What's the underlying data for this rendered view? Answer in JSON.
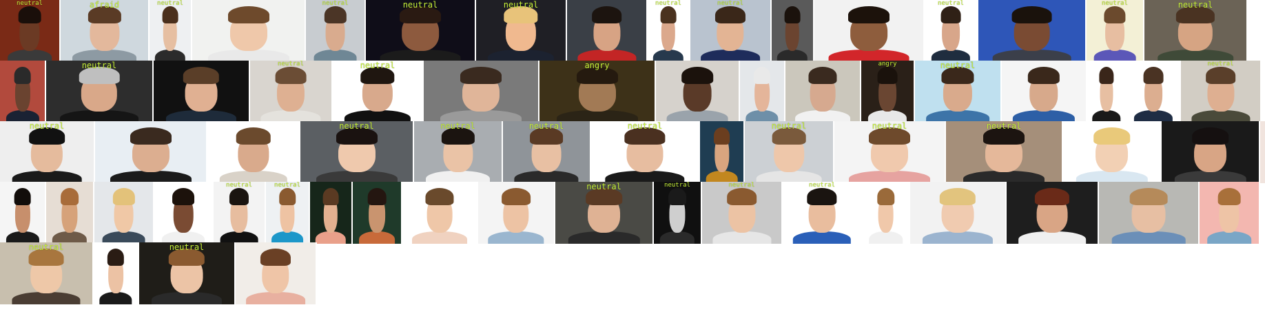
{
  "gallery": {
    "label_color": "#c8f23a",
    "rows": [
      {
        "tiles": [
          {
            "label": "neutral",
            "bg": "#7a2a16",
            "skin": "#6b3a24",
            "hair": "#1a0f0a",
            "cloth": "#3a3a3a"
          },
          {
            "label": "afraid",
            "bg": "#cfd8de",
            "skin": "#e3b89c",
            "hair": "#5a3b25",
            "cloth": "#8d9aa3"
          },
          {
            "label": "neutral",
            "bg": "#eef0f2",
            "skin": "#e6bfa2",
            "hair": "#4a2f1c",
            "cloth": "#2b2b2b"
          },
          {
            "label": "",
            "bg": "#f1f2f0",
            "skin": "#efc8aa",
            "hair": "#6e4a2c",
            "cloth": "#e9e9e9"
          },
          {
            "label": "neutral",
            "bg": "#c8ccd0",
            "skin": "#d9ab8e",
            "hair": "#4b3526",
            "cloth": "#6f8795"
          },
          {
            "label": "neutral",
            "bg": "#0f0d18",
            "skin": "#8d5a3e",
            "hair": "#2a1a12",
            "cloth": "#1b1b1b"
          },
          {
            "label": "neutral",
            "bg": "#1f1f25",
            "skin": "#f0b98f",
            "hair": "#e8c37a",
            "cloth": "#1c2230"
          },
          {
            "label": "",
            "bg": "#3a3f46",
            "skin": "#d7a384",
            "hair": "#1c140f",
            "cloth": "#c32525"
          },
          {
            "label": "neutral",
            "bg": "#ffffff",
            "skin": "#dba88c",
            "hair": "#4a321f",
            "cloth": "#27394d"
          },
          {
            "label": "neutral",
            "bg": "#b9c3cf",
            "skin": "#e3b494",
            "hair": "#3a2719",
            "cloth": "#1e2c5b"
          },
          {
            "label": "",
            "bg": "#5a5a5a",
            "skin": "#6b4430",
            "hair": "#1b120c",
            "cloth": "#2a2a2a"
          },
          {
            "label": "",
            "bg": "#f2f2f2",
            "skin": "#8e5d3d",
            "hair": "#1c120b",
            "cloth": "#d2262a"
          },
          {
            "label": "neutral",
            "bg": "#ffffff",
            "skin": "#d8a68a",
            "hair": "#2f2016",
            "cloth": "#1f2d3f"
          },
          {
            "label": "",
            "bg": "#2e56b8",
            "skin": "#7a4b33",
            "hair": "#1a120c",
            "cloth": "#3b3f4a"
          },
          {
            "label": "neutral",
            "bg": "#f3f0d6",
            "skin": "#e7bea1",
            "hair": "#6b4a2d",
            "cloth": "#5b57b8"
          },
          {
            "label": "neutral",
            "bg": "#6b6356",
            "skin": "#d6a483",
            "hair": "#4a3322",
            "cloth": "#3f4a38"
          }
        ]
      },
      {
        "tiles": [
          {
            "label": "",
            "bg": "#b24a3d",
            "skin": "#6a4330",
            "hair": "#2a2a2a",
            "cloth": "#1a2233"
          },
          {
            "label": "neutral",
            "bg": "#2d2d2d",
            "skin": "#d9a889",
            "hair": "#bfbfbf",
            "cloth": "#151515"
          },
          {
            "label": "",
            "bg": "#111111",
            "skin": "#e0b092",
            "hair": "#5a3e28",
            "cloth": "#1e2b3a"
          },
          {
            "label": "neutral",
            "bg": "#d9d5cf",
            "skin": "#deb092",
            "hair": "#6b4d35",
            "cloth": "#e4e2dd"
          },
          {
            "label": "neutral",
            "bg": "#ffffff",
            "skin": "#d8a98c",
            "hair": "#1f1610",
            "cloth": "#111111"
          },
          {
            "label": "",
            "bg": "#7a7a7a",
            "skin": "#e0b599",
            "hair": "#3a2a1f",
            "cloth": "#9a9a9a"
          },
          {
            "label": "angry",
            "bg": "#3d3118",
            "skin": "#a27a55",
            "hair": "#251a0f",
            "cloth": "#2b2416"
          },
          {
            "label": "",
            "bg": "#d6d2cc",
            "skin": "#5a3a28",
            "hair": "#1b120c",
            "cloth": "#9aa3ab"
          },
          {
            "label": "",
            "bg": "#e4e7ea",
            "skin": "#e4b59a",
            "hair": "#e9e9e9",
            "cloth": "#6e8fa8"
          },
          {
            "label": "",
            "bg": "#cbc7bc",
            "skin": "#d6a98f",
            "hair": "#3a2a1f",
            "cloth": "#f1f1f1"
          },
          {
            "label": "angry",
            "bg": "#2a2018",
            "skin": "#6a4632",
            "hair": "#1a120c",
            "cloth": "#e8e8e8"
          },
          {
            "label": "neutral",
            "bg": "#bfe0ef",
            "skin": "#d9aa8c",
            "hair": "#3a281b",
            "cloth": "#3d74a8"
          },
          {
            "label": "",
            "bg": "#f5f5f5",
            "skin": "#d7a98b",
            "hair": "#3a281b",
            "cloth": "#2d5fa6"
          },
          {
            "label": "",
            "bg": "#ffffff",
            "skin": "#e7bfa2",
            "hair": "#3a261a",
            "cloth": "#1a1a1a"
          },
          {
            "label": "",
            "bg": "#ffffff",
            "skin": "#dcae90",
            "hair": "#4a3323",
            "cloth": "#1f2d44"
          },
          {
            "label": "neutral",
            "bg": "#d2cdc4",
            "skin": "#deaf91",
            "hair": "#5a3f2a",
            "cloth": "#4a4a3a"
          }
        ]
      },
      {
        "tiles": [
          {
            "label": "neutral",
            "bg": "#eeeeee",
            "skin": "#e5bb9d",
            "hair": "#111111",
            "cloth": "#1a1a1a"
          },
          {
            "label": "",
            "bg": "#e8eef3",
            "skin": "#dcae90",
            "hair": "#3a2a1f",
            "cloth": "#1b1b1b"
          },
          {
            "label": "",
            "bg": "#ffffff",
            "skin": "#d9aa8c",
            "hair": "#6b4a2d",
            "cloth": "#d9d2c8"
          },
          {
            "label": "neutral",
            "bg": "#5b5f63",
            "skin": "#efc9ad",
            "hair": "#1a1210",
            "cloth": "#3a3a3a"
          },
          {
            "label": "neutral",
            "bg": "#a9adb1",
            "skin": "#eac3a6",
            "hair": "#1b1410",
            "cloth": "#f0f0f0"
          },
          {
            "label": "neutral",
            "bg": "#8f9499",
            "skin": "#e8c0a3",
            "hair": "#5a3a24",
            "cloth": "#2a2a2a"
          },
          {
            "label": "neutral",
            "bg": "#ffffff",
            "skin": "#e7bda0",
            "hair": "#4a3020",
            "cloth": "#1a1a1a"
          },
          {
            "label": "",
            "bg": "#1f3d52",
            "skin": "#d9a57f",
            "hair": "#6b3e1f",
            "cloth": "#c2871f"
          },
          {
            "label": "neutral",
            "bg": "#ccd0d4",
            "skin": "#eec7aa",
            "hair": "#7a5a3c",
            "cloth": "#e5e5e5"
          },
          {
            "label": "neutral",
            "bg": "#f4f4f4",
            "skin": "#f0c9ad",
            "hair": "#6e4a2c",
            "cloth": "#e6a3a0"
          },
          {
            "label": "neutral",
            "bg": "#a58f7a",
            "skin": "#e5b89a",
            "hair": "#1c1410",
            "cloth": "#2a2a2a"
          },
          {
            "label": "",
            "bg": "#ffffff",
            "skin": "#f2d0b4",
            "hair": "#e9c97a",
            "cloth": "#d9e7f1"
          },
          {
            "label": "",
            "bg": "#1a1a1a",
            "skin": "#d8a585",
            "hair": "#151010",
            "cloth": "#3a3a3a"
          },
          {
            "label": "",
            "bg": "#f1e4de",
            "skin": "#f0c6a8",
            "hair": "#8a3a1c",
            "cloth": "#d4c4b8"
          }
        ]
      },
      {
        "tiles": [
          {
            "label": "",
            "bg": "#f5f5f5",
            "skin": "#c78f6c",
            "hair": "#120d0a",
            "cloth": "#1a1a1a"
          },
          {
            "label": "",
            "bg": "#e6ddd4",
            "skin": "#d6a27a",
            "hair": "#a86c3a",
            "cloth": "#6e5a48"
          },
          {
            "label": "",
            "bg": "#e4e7ea",
            "skin": "#f0c8a6",
            "hair": "#e3c27a",
            "cloth": "#3a4a5a"
          },
          {
            "label": "",
            "bg": "#ffffff",
            "skin": "#7a4b33",
            "hair": "#1c120b",
            "cloth": "#f0f0f0"
          },
          {
            "label": "neutral",
            "bg": "#f3f3f3",
            "skin": "#e7bd9f",
            "hair": "#1a1410",
            "cloth": "#111111"
          },
          {
            "label": "neutral",
            "bg": "#eef1f3",
            "skin": "#eec3a3",
            "hair": "#8a5a30",
            "cloth": "#1c97c9"
          },
          {
            "label": "",
            "bg": "#16261a",
            "skin": "#e3b190",
            "hair": "#5a3a22",
            "cloth": "#e9a08a"
          },
          {
            "label": "",
            "bg": "#1f3a2a",
            "skin": "#c9946f",
            "hair": "#241610",
            "cloth": "#c86a3a"
          },
          {
            "label": "",
            "bg": "#ffffff",
            "skin": "#efc7a8",
            "hair": "#6a4a2c",
            "cloth": "#f0d2c0"
          },
          {
            "label": "",
            "bg": "#f4f4f4",
            "skin": "#edc3a4",
            "hair": "#8a5a30",
            "cloth": "#9ab6cf"
          },
          {
            "label": "neutral",
            "bg": "#4a4a45",
            "skin": "#dfb294",
            "hair": "#5a3a24",
            "cloth": "#2a2a2a"
          },
          {
            "label": "neutral",
            "bg": "#101010",
            "skin": "#cfcfcf",
            "hair": "#1a1a1a",
            "cloth": "#2a2a2a"
          },
          {
            "label": "neutral",
            "bg": "#c9c9c9",
            "skin": "#ecc3a4",
            "hair": "#8a5a30",
            "cloth": "#e6e6e6"
          },
          {
            "label": "neutral",
            "bg": "#ffffff",
            "skin": "#e9bd9e",
            "hair": "#1a1410",
            "cloth": "#2a5fb8"
          },
          {
            "label": "",
            "bg": "#ffffff",
            "skin": "#f0c8aa",
            "hair": "#9a6a3a",
            "cloth": "#f0f0f0"
          },
          {
            "label": "",
            "bg": "#f2f2f2",
            "skin": "#f0cbb0",
            "hair": "#e2c47e",
            "cloth": "#9bb4cf"
          },
          {
            "label": "",
            "bg": "#1e1e1e",
            "skin": "#d9a585",
            "hair": "#6a2a18",
            "cloth": "#f0f0f0"
          },
          {
            "label": "",
            "bg": "#b8b8b4",
            "skin": "#e7bfa3",
            "hair": "#b58a5a",
            "cloth": "#6b8fb8"
          },
          {
            "label": "",
            "bg": "#f3b7b0",
            "skin": "#eec4a6",
            "hair": "#a8703a",
            "cloth": "#7aa6c6"
          }
        ]
      },
      {
        "tiles": [
          {
            "label": "neutral",
            "bg": "#c8bfae",
            "skin": "#eec8a8",
            "hair": "#a8763e",
            "cloth": "#4a3d33"
          },
          {
            "label": "",
            "bg": "#ffffff",
            "skin": "#ecc2a4",
            "hair": "#2a1c14",
            "cloth": "#1a1a1a"
          },
          {
            "label": "neutral",
            "bg": "#1f1d18",
            "skin": "#ecc4a6",
            "hair": "#8a5a30",
            "cloth": "#2a2a2a"
          },
          {
            "label": "",
            "bg": "#f1ede8",
            "skin": "#efc5a7",
            "hair": "#6a4025",
            "cloth": "#e8b0a0"
          }
        ]
      }
    ]
  }
}
